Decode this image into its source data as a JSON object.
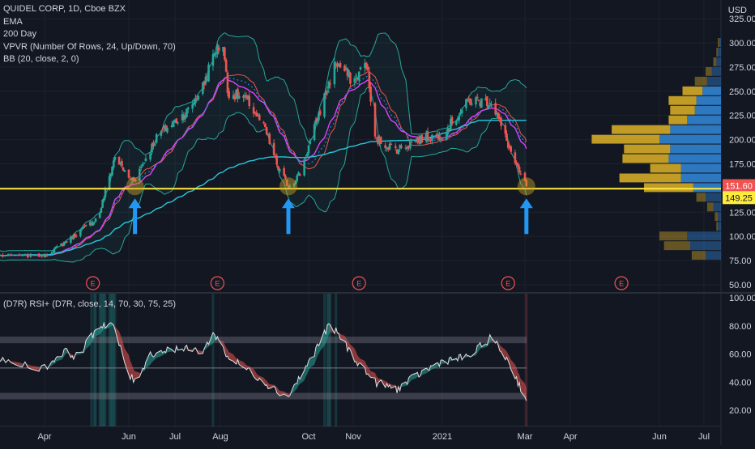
{
  "legend": {
    "symbol": "QUIDEL CORP, 1D, Cboe BZX",
    "line2": "EMA",
    "line3": "200 Day",
    "line4": "VPVR (Number Of Rows, 24, Up/Down, 70)",
    "line5": "BB (20, close, 2, 0)"
  },
  "rsi_legend": "(D7R) RSI+ (D7R, close, 14, 70, 30, 75, 25)",
  "currency": "USD",
  "earnings_marker": "E",
  "price_labels": {
    "last": "151.60",
    "level": "149.25"
  },
  "colors": {
    "background": "#131722",
    "up": "#26a69a",
    "down": "#ef5350",
    "support_line": "#ffeb3b",
    "arrow": "#2196f3",
    "ema": "#e040fb",
    "sma200": "#26c6da",
    "bb": "#26a69a",
    "vp_up": "#2f7dc9",
    "vp_down": "#c9a227"
  },
  "chart_data": [
    {
      "type": "candlestick",
      "title": "QUIDEL CORP, 1D, Cboe BZX",
      "x_ticks": [
        "Apr",
        "Jun",
        "Jul",
        "Aug",
        "Oct",
        "Nov",
        "2021",
        "Mar",
        "Apr",
        "Jun",
        "Jul"
      ],
      "y_ticks": [
        50,
        75,
        100,
        125,
        150,
        175,
        200,
        225,
        250,
        275,
        300,
        325
      ],
      "ylim": [
        42,
        332
      ],
      "price_path": [
        [
          "2020-03-16",
          80
        ],
        [
          "2020-04-01",
          80
        ],
        [
          "2020-04-20",
          98
        ],
        [
          "2020-05-10",
          120
        ],
        [
          "2020-05-22",
          183
        ],
        [
          "2020-06-01",
          160
        ],
        [
          "2020-06-05",
          160
        ],
        [
          "2020-06-20",
          205
        ],
        [
          "2020-07-10",
          230
        ],
        [
          "2020-07-20",
          255
        ],
        [
          "2020-07-28",
          290
        ],
        [
          "2020-08-03",
          300
        ],
        [
          "2020-08-06",
          250
        ],
        [
          "2020-08-20",
          240
        ],
        [
          "2020-09-01",
          210
        ],
        [
          "2020-09-10",
          170
        ],
        [
          "2020-09-17",
          152
        ],
        [
          "2020-09-25",
          165
        ],
        [
          "2020-10-10",
          235
        ],
        [
          "2020-10-20",
          280
        ],
        [
          "2020-11-01",
          260
        ],
        [
          "2020-11-10",
          280
        ],
        [
          "2020-11-16",
          200
        ],
        [
          "2020-12-01",
          190
        ],
        [
          "2020-12-15",
          200
        ],
        [
          "2021-01-01",
          205
        ],
        [
          "2021-01-20",
          240
        ],
        [
          "2021-02-05",
          240
        ],
        [
          "2021-02-17",
          195
        ],
        [
          "2021-02-24",
          168
        ],
        [
          "2021-03-02",
          151.6
        ]
      ],
      "last_price": 151.6,
      "support_level": 149.25,
      "earnings_dates": [
        "2020-05-06",
        "2020-07-30",
        "2020-11-05",
        "2021-02-17",
        "2021-05-06"
      ],
      "bounce_arrows": [
        "2020-06-05",
        "2020-09-17",
        "2021-03-02"
      ],
      "volume_profile": [
        {
          "price": 300,
          "up": 0.01,
          "down": 0.01
        },
        {
          "price": 290,
          "up": 0.02,
          "down": 0.01
        },
        {
          "price": 280,
          "up": 0.03,
          "down": 0.02
        },
        {
          "price": 270,
          "up": 0.06,
          "down": 0.04
        },
        {
          "price": 260,
          "up": 0.09,
          "down": 0.08
        },
        {
          "price": 250,
          "up": 0.12,
          "down": 0.13
        },
        {
          "price": 240,
          "up": 0.16,
          "down": 0.18
        },
        {
          "price": 230,
          "up": 0.17,
          "down": 0.16
        },
        {
          "price": 220,
          "up": 0.22,
          "down": 0.12
        },
        {
          "price": 210,
          "up": 0.33,
          "down": 0.38
        },
        {
          "price": 200,
          "up": 0.4,
          "down": 0.44
        },
        {
          "price": 190,
          "up": 0.33,
          "down": 0.3
        },
        {
          "price": 180,
          "up": 0.34,
          "down": 0.3
        },
        {
          "price": 170,
          "up": 0.26,
          "down": 0.2
        },
        {
          "price": 160,
          "up": 0.26,
          "down": 0.4
        },
        {
          "price": 150,
          "up": 0.18,
          "down": 0.32
        },
        {
          "price": 140,
          "up": 0.1,
          "down": 0.06
        },
        {
          "price": 130,
          "up": 0.05,
          "down": 0.04
        },
        {
          "price": 120,
          "up": 0.02,
          "down": 0.02
        },
        {
          "price": 110,
          "up": 0.02,
          "down": 0.01
        },
        {
          "price": 100,
          "up": 0.22,
          "down": 0.18
        },
        {
          "price": 90,
          "up": 0.2,
          "down": 0.17
        },
        {
          "price": 80,
          "up": 0.1,
          "down": 0.09
        }
      ]
    },
    {
      "type": "line",
      "title": "(D7R) RSI+ (D7R, close, 14, 70, 30, 75, 25)",
      "y_ticks": [
        20,
        40,
        60,
        80,
        100
      ],
      "ylim": [
        10,
        100
      ],
      "levels": [
        70,
        50,
        30
      ],
      "rsi_path": [
        [
          "2020-03-16",
          55
        ],
        [
          "2020-04-01",
          50
        ],
        [
          "2020-04-15",
          62
        ],
        [
          "2020-04-25",
          58
        ],
        [
          "2020-05-10",
          80
        ],
        [
          "2020-05-20",
          82
        ],
        [
          "2020-06-01",
          45
        ],
        [
          "2020-06-05",
          40
        ],
        [
          "2020-06-15",
          60
        ],
        [
          "2020-07-01",
          64
        ],
        [
          "2020-07-20",
          62
        ],
        [
          "2020-07-28",
          75
        ],
        [
          "2020-08-06",
          58
        ],
        [
          "2020-08-25",
          45
        ],
        [
          "2020-09-10",
          33
        ],
        [
          "2020-09-17",
          30
        ],
        [
          "2020-09-30",
          52
        ],
        [
          "2020-10-15",
          80
        ],
        [
          "2020-10-22",
          74
        ],
        [
          "2020-11-01",
          58
        ],
        [
          "2020-11-16",
          40
        ],
        [
          "2020-12-01",
          35
        ],
        [
          "2020-12-15",
          45
        ],
        [
          "2021-01-01",
          55
        ],
        [
          "2021-01-20",
          58
        ],
        [
          "2021-02-05",
          72
        ],
        [
          "2021-02-17",
          55
        ],
        [
          "2021-02-24",
          40
        ],
        [
          "2021-03-02",
          28
        ]
      ]
    }
  ]
}
